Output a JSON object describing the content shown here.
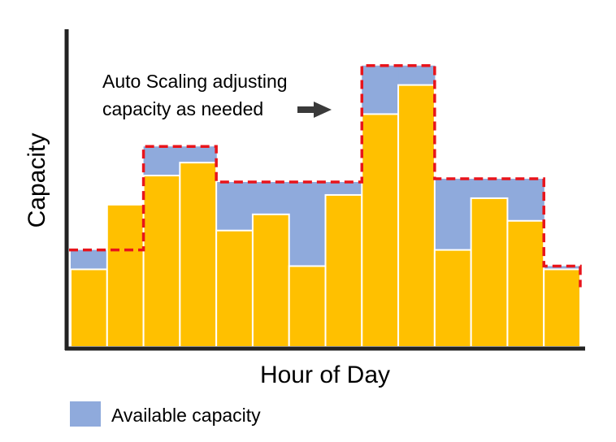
{
  "chart_data": {
    "type": "bar",
    "title": "",
    "xlabel": "Hour of Day",
    "ylabel": "Capacity",
    "ylim": [
      0,
      100
    ],
    "grid": false,
    "legend_position": "bottom-left",
    "series": [
      {
        "values": [
          24,
          44,
          53,
          57,
          36,
          41,
          25,
          47,
          72,
          81,
          30,
          46,
          39,
          24
        ]
      },
      {
        "name": "Available capacity",
        "values": [
          30,
          30,
          62,
          62,
          51,
          51,
          51,
          51,
          87,
          87,
          52,
          52,
          52,
          25
        ]
      }
    ],
    "annotations": [
      {
        "lines": [
          "Auto Scaling adjusting",
          "capacity as needed"
        ],
        "arrow": "right"
      }
    ],
    "colors": {
      "usage": "#FFC000",
      "available": "#8FAADC",
      "outline": "#E8141B",
      "axis": "#222222"
    }
  }
}
